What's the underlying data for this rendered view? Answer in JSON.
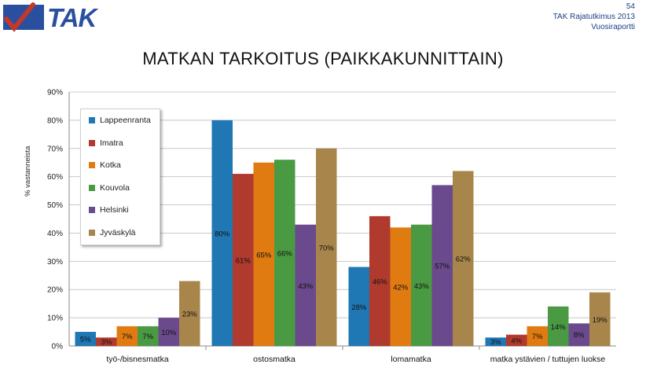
{
  "header": {
    "logo_text": "TAK",
    "page_number": "54",
    "report_title": "TAK Rajatutkimus 2013",
    "report_subtitle": "Vuosiraportti"
  },
  "chart_data": {
    "type": "bar",
    "title": "MATKAN TARKOITUS (PAIKKAKUNNITTAIN)",
    "ylabel": "% vastanneista",
    "xlabel": "",
    "ylim": [
      0,
      90
    ],
    "yticks": [
      "0%",
      "10%",
      "20%",
      "30%",
      "40%",
      "50%",
      "60%",
      "70%",
      "80%",
      "90%"
    ],
    "grid": true,
    "legend_position": "top-left",
    "categories": [
      "työ-/bisnesmatka",
      "ostosmatka",
      "lomamatka",
      "matka ystävien / tuttujen luokse"
    ],
    "series": [
      {
        "name": "Lappeenranta",
        "color": "#1f77b4",
        "values": [
          5,
          80,
          28,
          3
        ],
        "labels": [
          "5%",
          "80%",
          "28%",
          "3%"
        ]
      },
      {
        "name": "Imatra",
        "color": "#b03a2e",
        "values": [
          3,
          61,
          46,
          4
        ],
        "labels": [
          "3%",
          "61%",
          "46%",
          "4%"
        ]
      },
      {
        "name": "Kotka",
        "color": "#e07b11",
        "values": [
          7,
          65,
          42,
          7
        ],
        "labels": [
          "7%",
          "65%",
          "42%",
          "7%"
        ]
      },
      {
        "name": "Kouvola",
        "color": "#4a9a44",
        "values": [
          7,
          66,
          43,
          14
        ],
        "labels": [
          "7%",
          "66%",
          "43%",
          "14%"
        ]
      },
      {
        "name": "Helsinki",
        "color": "#6a4a8c",
        "values": [
          10,
          43,
          57,
          8
        ],
        "labels": [
          "10%",
          "43%",
          "57%",
          "8%"
        ]
      },
      {
        "name": "Jyväskylä",
        "color": "#a8864b",
        "values": [
          23,
          70,
          62,
          19
        ],
        "labels": [
          "23%",
          "70%",
          "62%",
          "19%"
        ]
      }
    ]
  }
}
